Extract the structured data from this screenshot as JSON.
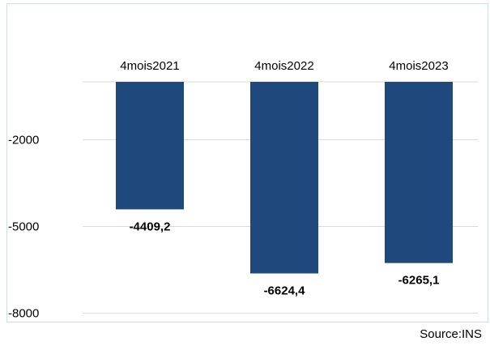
{
  "chart_data": {
    "type": "bar",
    "categories": [
      "4mois2021",
      "4mois2022",
      "4mois2023"
    ],
    "values": [
      -4409.2,
      -6624.4,
      -6265.1
    ],
    "data_labels": [
      "-4409,2",
      "-6624,4",
      "-6265,1"
    ],
    "yticks": [
      -2000,
      -5000,
      -8000
    ],
    "ytick_labels": [
      "-2000",
      "-5000",
      "-8000"
    ],
    "ylim": [
      -8000,
      0
    ],
    "grid": true,
    "title": "",
    "xlabel": "",
    "ylabel": "",
    "bar_color": "#1f497d"
  },
  "source": "Source:INS"
}
